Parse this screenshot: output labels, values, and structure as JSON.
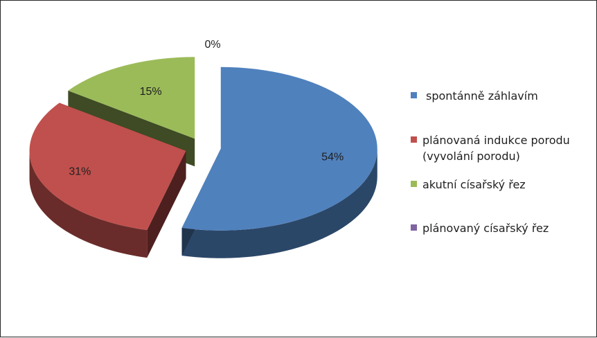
{
  "chart_data": {
    "type": "pie",
    "title": "",
    "series": [
      {
        "values": [
          54,
          31,
          15,
          0
        ],
        "labels": [
          "54%",
          "31%",
          "15%",
          "0%"
        ]
      }
    ],
    "categories": [
      "spontánně záhlavím",
      "plánovaná indukce porodu (vyvolání porodu)",
      "akutní císařský řez",
      "plánovaný císařský řez"
    ],
    "legend_lines": [
      [
        "spontánně záhlavím"
      ],
      [
        "plánovaná indukce porodu",
        "(vyvolání porodu)"
      ],
      [
        "akutní císařský řez"
      ],
      [
        "plánovaný císařský řez"
      ]
    ],
    "colors": [
      "#4F81BD",
      "#C0504D",
      "#9BBB59",
      "#8064A2"
    ],
    "legend_position": "right",
    "style": "3d-exploded"
  }
}
